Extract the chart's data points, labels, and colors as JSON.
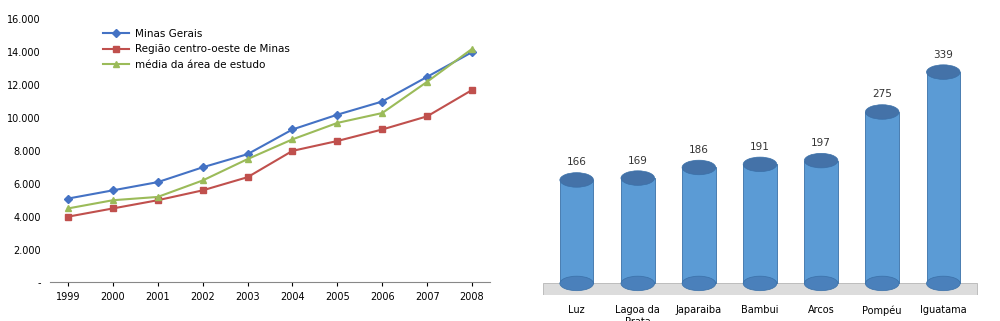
{
  "years": [
    1999,
    2000,
    2001,
    2002,
    2003,
    2004,
    2005,
    2006,
    2007,
    2008
  ],
  "minas_gerais": [
    5100,
    5600,
    6100,
    7000,
    7800,
    9300,
    10200,
    11000,
    12500,
    14000
  ],
  "regiao_centro": [
    4000,
    4500,
    5000,
    5600,
    6400,
    8000,
    8600,
    9300,
    10100,
    11700
  ],
  "media_area": [
    4500,
    5000,
    5200,
    6200,
    7500,
    8700,
    9700,
    10300,
    12200,
    14200
  ],
  "line_colors": [
    "#4472C4",
    "#C0504D",
    "#9BBB59"
  ],
  "line_labels": [
    "Minas Gerais",
    "Região centro-oeste de Minas",
    "média da área de estudo"
  ],
  "ylim_line": [
    0,
    16000
  ],
  "yticks_line": [
    0,
    2000,
    4000,
    6000,
    8000,
    10000,
    12000,
    14000,
    16000
  ],
  "ytick_labels_line": [
    "-",
    "2.000",
    "4.000",
    "6.000",
    "8.000",
    "10.000",
    "12.000",
    "14.000",
    "16.000"
  ],
  "bar_categories": [
    "Luz",
    "Lagoa da\nPrata",
    "Japaraiba",
    "Bambui",
    "Arcos",
    "Pompéu",
    "Iguatama"
  ],
  "bar_values": [
    166,
    169,
    186,
    191,
    197,
    275,
    339
  ],
  "bar_color_face": "#5B9BD5",
  "bar_color_top": "#4472A8",
  "bar_color_side": "#3A6090",
  "background_color": "#FFFFFF",
  "floor_color": "#E8E8E8"
}
